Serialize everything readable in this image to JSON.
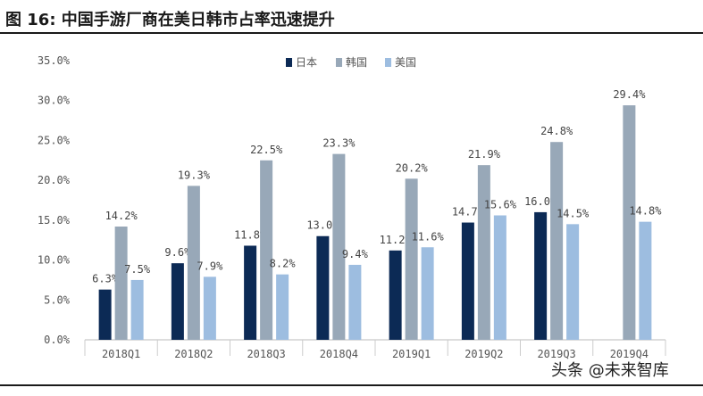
{
  "figure": {
    "title": "图 16:  中国手游厂商在美日韩市占率迅速提升",
    "watermark": "头条 @未来智库"
  },
  "colors": {
    "japan": "#0c2a55",
    "korea": "#98a8b8",
    "usa": "#9dbde0",
    "axis_text": "#555555",
    "label_text": "#444444"
  },
  "chart_data": {
    "type": "bar",
    "categories": [
      "2018Q1",
      "2018Q2",
      "2018Q3",
      "2018Q4",
      "2019Q1",
      "2019Q2",
      "2019Q3",
      "2019Q4"
    ],
    "series": [
      {
        "name": "日本",
        "values": [
          6.3,
          9.6,
          11.8,
          13.0,
          11.2,
          14.7,
          16.0,
          null
        ],
        "labels": [
          "6.3%",
          "9.6%",
          "11.8%",
          "13.0%",
          "11.2%",
          "14.7%",
          "16.0%",
          ""
        ]
      },
      {
        "name": "韩国",
        "values": [
          14.2,
          19.3,
          22.5,
          23.3,
          20.2,
          21.9,
          24.8,
          29.4
        ],
        "labels": [
          "14.2%",
          "19.3%",
          "22.5%",
          "23.3%",
          "20.2%",
          "21.9%",
          "24.8%",
          "29.4%"
        ]
      },
      {
        "name": "美国",
        "values": [
          7.5,
          7.9,
          8.2,
          9.4,
          11.6,
          15.6,
          14.5,
          14.8
        ],
        "labels": [
          "7.5%",
          "7.9%",
          "8.2%",
          "9.4%",
          "11.6%",
          "15.6%",
          "14.5%",
          "14.8%"
        ]
      }
    ],
    "yticks": [
      "0.0%",
      "5.0%",
      "10.0%",
      "15.0%",
      "20.0%",
      "25.0%",
      "30.0%",
      "35.0%"
    ],
    "ylim": [
      0,
      35
    ],
    "grid": false,
    "legend_position": "top-center",
    "title": "",
    "xlabel": "",
    "ylabel": ""
  }
}
